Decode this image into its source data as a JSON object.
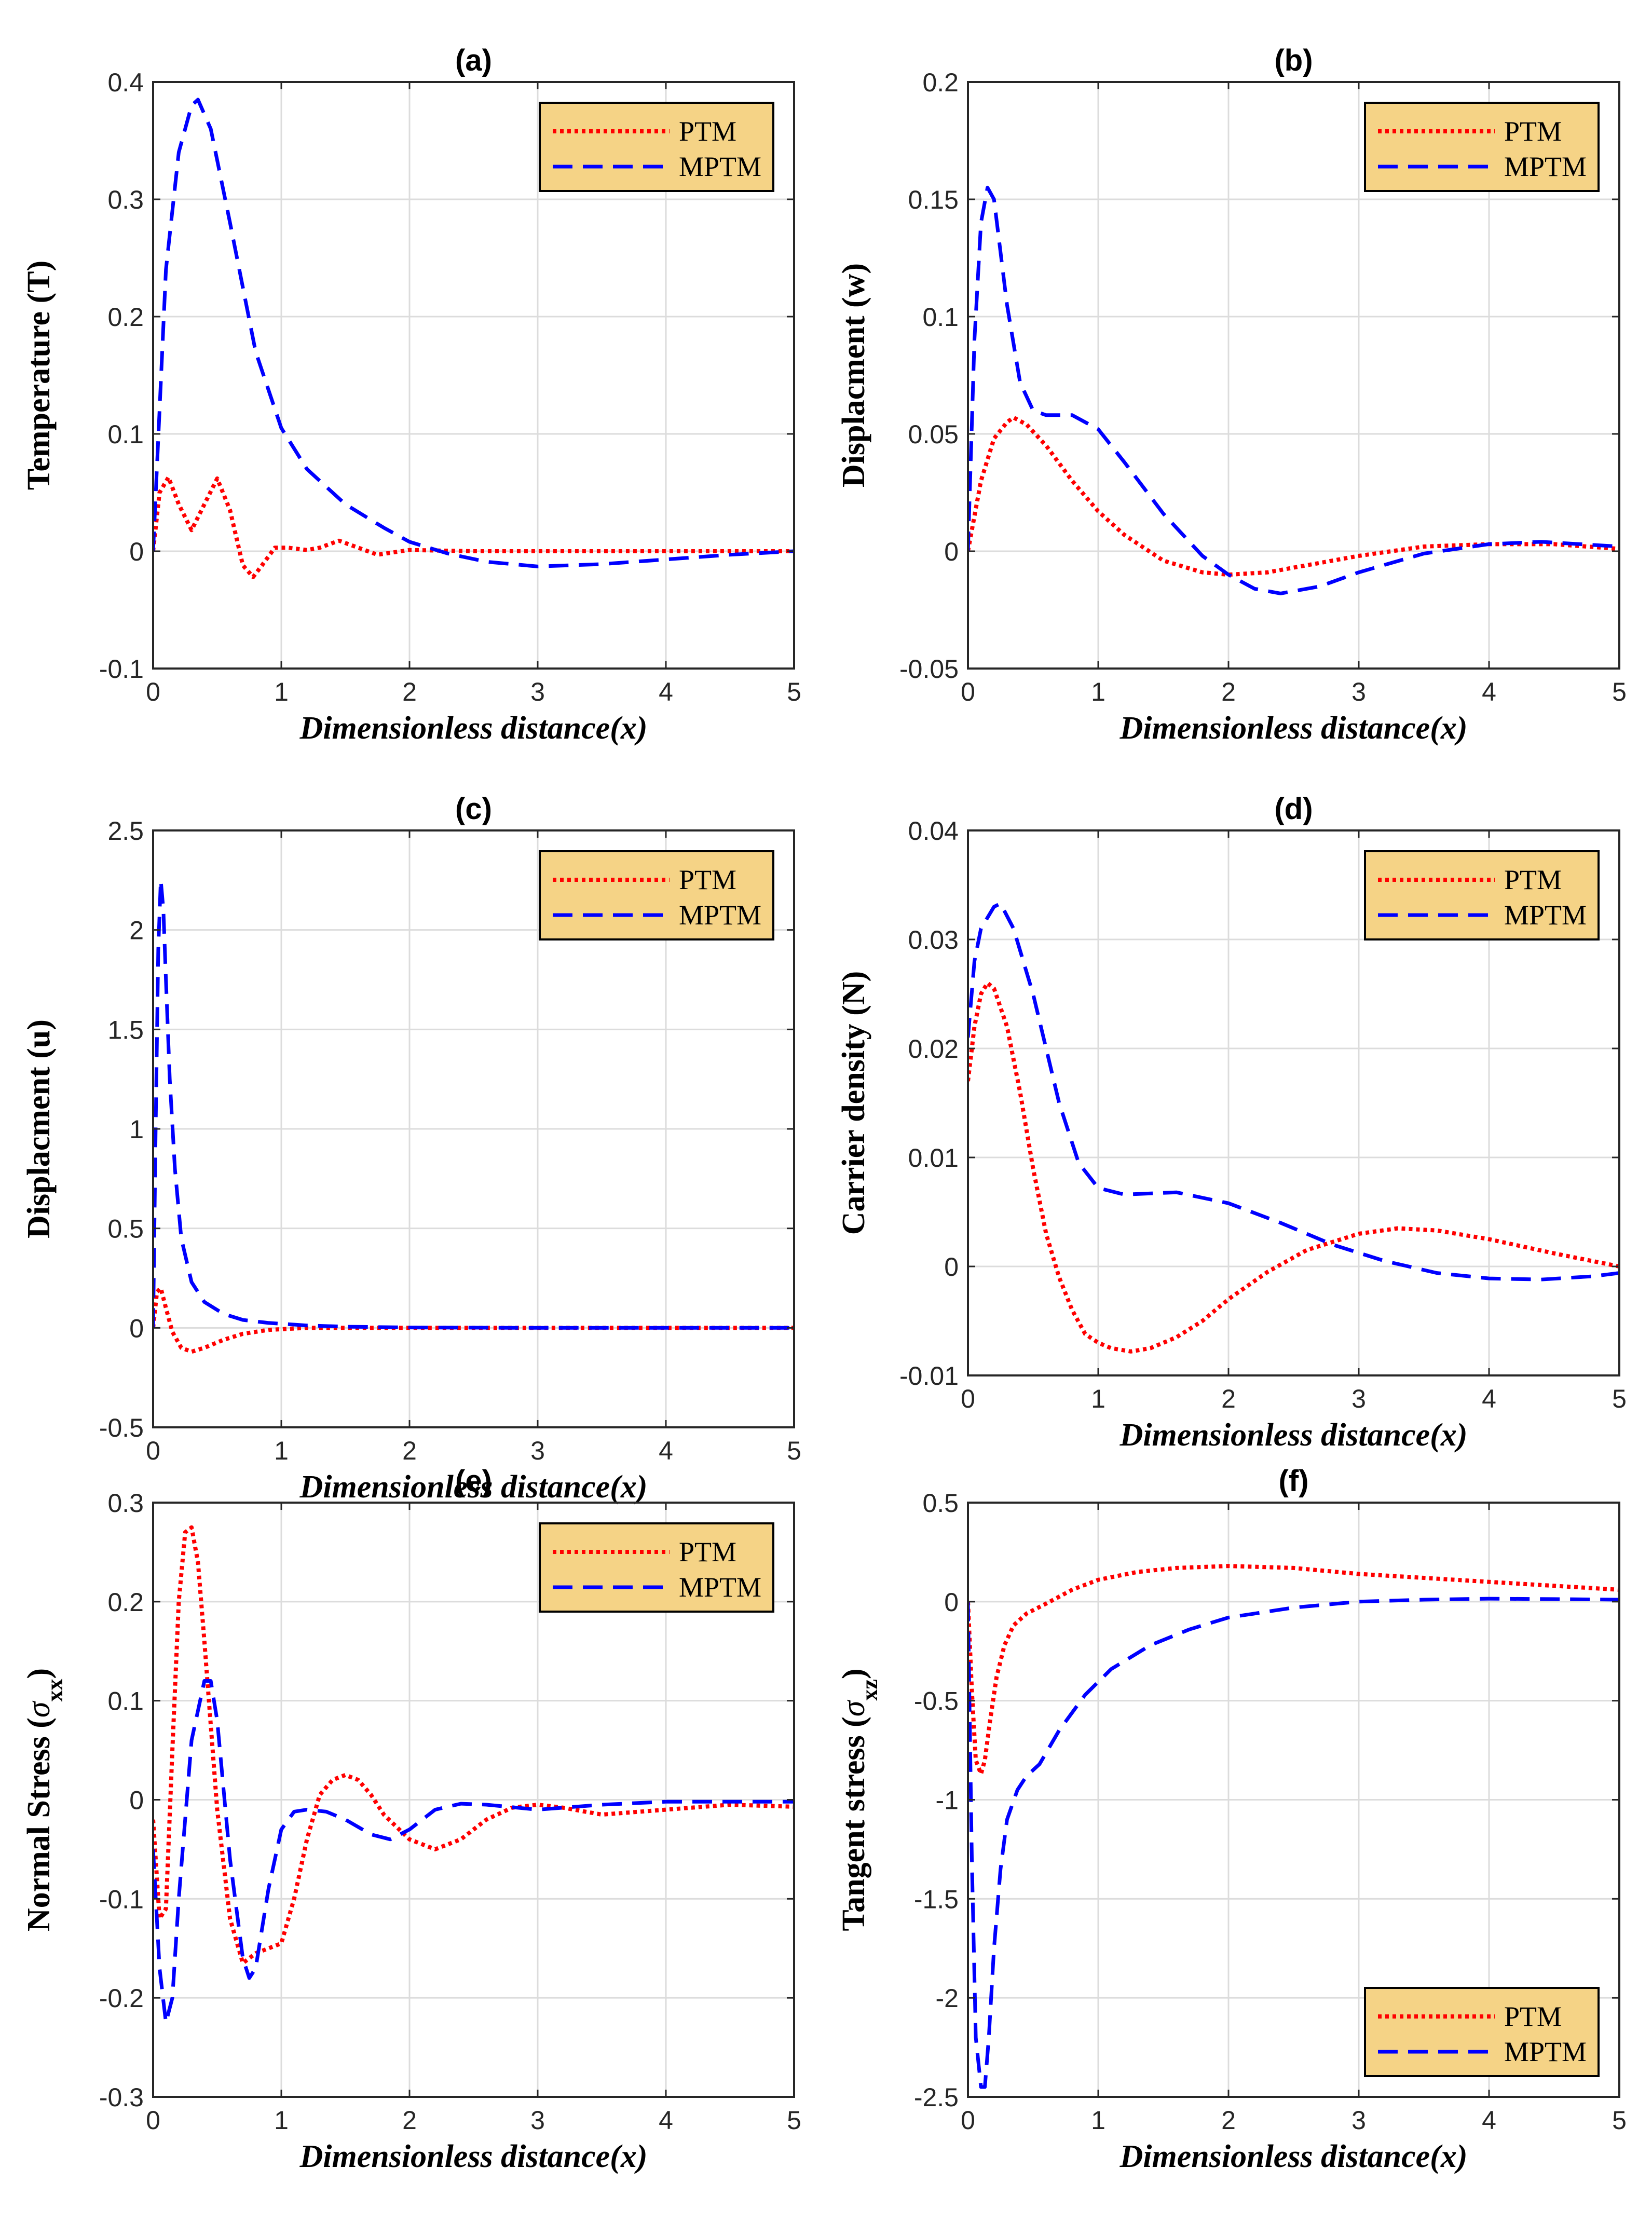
{
  "colors": {
    "PTM": "#ff0000",
    "MPTM": "#0000ff",
    "legend_bg": "#f5d386"
  },
  "chart_data": [
    {
      "id": "a",
      "type": "line",
      "title": "(a)",
      "xlabel": "Dimensionless distance(x)",
      "ylabel": "Temperature (T)",
      "xlim": [
        0,
        5
      ],
      "ylim": [
        -0.1,
        0.4
      ],
      "grid": true,
      "xticks": [
        0,
        1,
        2,
        3,
        4,
        5
      ],
      "xtick_labels": [
        "0",
        "1",
        "2",
        "3",
        "4",
        "5"
      ],
      "yticks": [
        -0.1,
        0,
        0.1,
        0.2,
        0.3,
        0.4
      ],
      "ytick_labels": [
        "-0.1",
        "0",
        "0.1",
        "0.2",
        "0.3",
        "0.4"
      ],
      "legend": "top-right",
      "series": [
        {
          "name": "PTM",
          "style": "dotted",
          "color": "#ff0000",
          "x": [
            0,
            0.05,
            0.12,
            0.2,
            0.3,
            0.4,
            0.5,
            0.6,
            0.7,
            0.78,
            0.85,
            0.95,
            1.05,
            1.2,
            1.3,
            1.45,
            1.6,
            1.75,
            2.0,
            2.5,
            3,
            4,
            5
          ],
          "y": [
            0,
            0.05,
            0.063,
            0.04,
            0.018,
            0.04,
            0.062,
            0.035,
            -0.012,
            -0.022,
            -0.012,
            0.003,
            0.003,
            0.001,
            0.003,
            0.009,
            0.003,
            -0.003,
            0.001,
            0,
            0,
            0,
            0
          ]
        },
        {
          "name": "MPTM",
          "style": "dashed",
          "color": "#0000ff",
          "x": [
            0,
            0.05,
            0.1,
            0.2,
            0.3,
            0.35,
            0.45,
            0.6,
            0.8,
            1.0,
            1.2,
            1.5,
            1.8,
            2.0,
            2.3,
            2.6,
            3.0,
            3.5,
            4.0,
            4.5,
            5
          ],
          "y": [
            0,
            0.12,
            0.24,
            0.34,
            0.38,
            0.385,
            0.36,
            0.28,
            0.17,
            0.105,
            0.07,
            0.04,
            0.02,
            0.008,
            -0.002,
            -0.009,
            -0.013,
            -0.011,
            -0.007,
            -0.003,
            0
          ]
        }
      ]
    },
    {
      "id": "b",
      "type": "line",
      "title": "(b)",
      "xlabel": "Dimensionless distance(x)",
      "ylabel": "Displacment (w)",
      "xlim": [
        0,
        5
      ],
      "ylim": [
        -0.05,
        0.2
      ],
      "grid": true,
      "xticks": [
        0,
        1,
        2,
        3,
        4,
        5
      ],
      "xtick_labels": [
        "0",
        "1",
        "2",
        "3",
        "4",
        "5"
      ],
      "yticks": [
        -0.05,
        0,
        0.05,
        0.1,
        0.15,
        0.2
      ],
      "ytick_labels": [
        "-0.05",
        "0",
        "0.05",
        "0.1",
        "0.15",
        "0.2"
      ],
      "legend": "top-right",
      "series": [
        {
          "name": "PTM",
          "style": "dotted",
          "color": "#ff0000",
          "x": [
            0,
            0.1,
            0.2,
            0.3,
            0.35,
            0.45,
            0.6,
            0.8,
            1.0,
            1.2,
            1.5,
            1.8,
            2.0,
            2.3,
            2.6,
            3.0,
            3.5,
            4.0,
            4.5,
            5
          ],
          "y": [
            0,
            0.03,
            0.048,
            0.055,
            0.057,
            0.054,
            0.045,
            0.03,
            0.017,
            0.007,
            -0.004,
            -0.009,
            -0.01,
            -0.009,
            -0.006,
            -0.002,
            0.002,
            0.003,
            0.003,
            0.001
          ]
        },
        {
          "name": "MPTM",
          "style": "dashed",
          "color": "#0000ff",
          "x": [
            0,
            0.05,
            0.1,
            0.15,
            0.2,
            0.3,
            0.4,
            0.5,
            0.6,
            0.8,
            1.0,
            1.2,
            1.5,
            1.8,
            2.0,
            2.2,
            2.4,
            2.7,
            3.0,
            3.5,
            4.0,
            4.4,
            5
          ],
          "y": [
            0,
            0.09,
            0.14,
            0.155,
            0.15,
            0.105,
            0.072,
            0.06,
            0.058,
            0.058,
            0.052,
            0.038,
            0.016,
            -0.002,
            -0.01,
            -0.016,
            -0.018,
            -0.015,
            -0.009,
            -0.001,
            0.003,
            0.004,
            0.002
          ]
        }
      ]
    },
    {
      "id": "c",
      "type": "line",
      "title": "(c)",
      "xlabel": "Dimensionless distance(x)",
      "ylabel": "Displacment (u)",
      "xlim": [
        0,
        5
      ],
      "ylim": [
        -0.5,
        2.5
      ],
      "grid": true,
      "xticks": [
        0,
        1,
        2,
        3,
        4,
        5
      ],
      "xtick_labels": [
        "0",
        "1",
        "2",
        "3",
        "4",
        "5"
      ],
      "yticks": [
        -0.5,
        0,
        0.5,
        1,
        1.5,
        2,
        2.5
      ],
      "ytick_labels": [
        "-0.5",
        "0",
        "0.5",
        "1",
        "1.5",
        "2",
        "2.5"
      ],
      "legend": "top-right",
      "series": [
        {
          "name": "PTM",
          "style": "dotted",
          "color": "#ff0000",
          "x": [
            0,
            0.03,
            0.06,
            0.1,
            0.15,
            0.22,
            0.3,
            0.4,
            0.55,
            0.7,
            0.9,
            1.2,
            1.5,
            2,
            3,
            4,
            5
          ],
          "y": [
            0,
            0.18,
            0.2,
            0.1,
            -0.02,
            -0.1,
            -0.12,
            -0.1,
            -0.06,
            -0.03,
            -0.01,
            0,
            0,
            0,
            0,
            0,
            0
          ]
        },
        {
          "name": "MPTM",
          "style": "dashed",
          "color": "#0000ff",
          "x": [
            0,
            0.02,
            0.04,
            0.06,
            0.08,
            0.1,
            0.13,
            0.17,
            0.22,
            0.3,
            0.4,
            0.55,
            0.7,
            0.9,
            1.2,
            1.5,
            2,
            3,
            4,
            5
          ],
          "y": [
            0,
            1.0,
            1.9,
            2.25,
            2.1,
            1.75,
            1.25,
            0.8,
            0.45,
            0.23,
            0.13,
            0.07,
            0.04,
            0.025,
            0.012,
            0.006,
            0.002,
            0,
            0,
            0
          ]
        }
      ]
    },
    {
      "id": "d",
      "type": "line",
      "title": "(d)",
      "xlabel": "Dimensionless distance(x)",
      "ylabel": "Carrier density (N)",
      "xlim": [
        0,
        5
      ],
      "ylim": [
        -0.01,
        0.04
      ],
      "grid": true,
      "xticks": [
        0,
        1,
        2,
        3,
        4,
        5
      ],
      "xtick_labels": [
        "0",
        "1",
        "2",
        "3",
        "4",
        "5"
      ],
      "yticks": [
        -0.01,
        0,
        0.01,
        0.02,
        0.03,
        0.04
      ],
      "ytick_labels": [
        "-0.01",
        "0",
        "0.01",
        "0.02",
        "0.03",
        "0.04"
      ],
      "legend": "top-right",
      "series": [
        {
          "name": "PTM",
          "style": "dotted",
          "color": "#ff0000",
          "x": [
            0,
            0.05,
            0.1,
            0.15,
            0.2,
            0.3,
            0.4,
            0.5,
            0.6,
            0.7,
            0.8,
            0.9,
            1.0,
            1.1,
            1.25,
            1.4,
            1.6,
            1.8,
            2.0,
            2.3,
            2.6,
            3.0,
            3.3,
            3.6,
            4.0,
            4.5,
            5
          ],
          "y": [
            0.017,
            0.022,
            0.025,
            0.026,
            0.0255,
            0.022,
            0.016,
            0.009,
            0.003,
            -0.001,
            -0.004,
            -0.0062,
            -0.007,
            -0.0075,
            -0.0078,
            -0.0075,
            -0.0065,
            -0.005,
            -0.003,
            -0.0005,
            0.0015,
            0.003,
            0.0035,
            0.0033,
            0.0025,
            0.0012,
            0
          ]
        },
        {
          "name": "MPTM",
          "style": "dashed",
          "color": "#0000ff",
          "x": [
            0,
            0.05,
            0.1,
            0.2,
            0.25,
            0.35,
            0.5,
            0.7,
            0.85,
            1.0,
            1.2,
            1.6,
            2.0,
            2.4,
            2.8,
            3.2,
            3.6,
            4.0,
            4.4,
            4.8,
            5
          ],
          "y": [
            0.021,
            0.028,
            0.031,
            0.033,
            0.0333,
            0.031,
            0.025,
            0.015,
            0.0095,
            0.0072,
            0.0066,
            0.0068,
            0.0058,
            0.004,
            0.002,
            0.0005,
            -0.0006,
            -0.0011,
            -0.0012,
            -0.0009,
            -0.0006
          ]
        }
      ]
    },
    {
      "id": "e",
      "type": "line",
      "title": "(e)",
      "xlabel": "Dimensionless distance(x)",
      "ylabel": "Normal Stress",
      "ylabel_symbol": "σ",
      "ylabel_subscript": "xx",
      "xlim": [
        0,
        5
      ],
      "ylim": [
        -0.3,
        0.3
      ],
      "grid": true,
      "xticks": [
        0,
        1,
        2,
        3,
        4,
        5
      ],
      "xtick_labels": [
        "0",
        "1",
        "2",
        "3",
        "4",
        "5"
      ],
      "yticks": [
        -0.3,
        -0.2,
        -0.1,
        0,
        0.1,
        0.2,
        0.3
      ],
      "ytick_labels": [
        "-0.3",
        "-0.2",
        "-0.1",
        "0",
        "0.1",
        "0.2",
        "0.3"
      ],
      "legend": "top-right",
      "series": [
        {
          "name": "PTM",
          "style": "dotted",
          "color": "#ff0000",
          "x": [
            0,
            0.05,
            0.1,
            0.15,
            0.2,
            0.25,
            0.3,
            0.35,
            0.4,
            0.5,
            0.6,
            0.7,
            0.8,
            0.9,
            1.0,
            1.1,
            1.2,
            1.3,
            1.4,
            1.5,
            1.6,
            1.7,
            1.8,
            2.0,
            2.2,
            2.4,
            2.6,
            2.8,
            3.0,
            3.2,
            3.5,
            4.0,
            4.5,
            5
          ],
          "y": [
            -0.02,
            -0.12,
            -0.11,
            0.05,
            0.2,
            0.27,
            0.275,
            0.24,
            0.16,
            -0.01,
            -0.12,
            -0.165,
            -0.155,
            -0.15,
            -0.145,
            -0.1,
            -0.04,
            0.005,
            0.02,
            0.025,
            0.02,
            0.005,
            -0.015,
            -0.04,
            -0.05,
            -0.04,
            -0.02,
            -0.008,
            -0.005,
            -0.008,
            -0.015,
            -0.01,
            -0.005,
            -0.007
          ]
        },
        {
          "name": "MPTM",
          "style": "dashed",
          "color": "#0000ff",
          "x": [
            0,
            0.05,
            0.1,
            0.15,
            0.2,
            0.3,
            0.4,
            0.45,
            0.5,
            0.6,
            0.7,
            0.75,
            0.8,
            0.9,
            1.0,
            1.1,
            1.2,
            1.35,
            1.5,
            1.7,
            1.85,
            2.0,
            2.2,
            2.4,
            2.6,
            3.0,
            3.5,
            4.0,
            4.5,
            5
          ],
          "y": [
            -0.05,
            -0.17,
            -0.225,
            -0.2,
            -0.1,
            0.06,
            0.12,
            0.12,
            0.08,
            -0.06,
            -0.16,
            -0.18,
            -0.17,
            -0.09,
            -0.03,
            -0.012,
            -0.01,
            -0.012,
            -0.02,
            -0.035,
            -0.04,
            -0.03,
            -0.01,
            -0.004,
            -0.005,
            -0.01,
            -0.005,
            -0.002,
            -0.002,
            -0.002
          ]
        }
      ]
    },
    {
      "id": "f",
      "type": "line",
      "title": "(f)",
      "xlabel": "Dimensionless distance(x)",
      "ylabel": "Tangent stress",
      "ylabel_symbol": "σ",
      "ylabel_subscript": "xz",
      "xlim": [
        0,
        5
      ],
      "ylim": [
        -2.5,
        0.5
      ],
      "grid": true,
      "xticks": [
        0,
        1,
        2,
        3,
        4,
        5
      ],
      "xtick_labels": [
        "0",
        "1",
        "2",
        "3",
        "4",
        "5"
      ],
      "yticks": [
        -2.5,
        -2,
        -1.5,
        -1,
        -0.5,
        0,
        0.5
      ],
      "ytick_labels": [
        "-2.5",
        "-2",
        "-1.5",
        "-1",
        "-0.5",
        "0",
        "0.5"
      ],
      "legend": "bottom-right",
      "series": [
        {
          "name": "PTM",
          "style": "dotted",
          "color": "#ff0000",
          "x": [
            0,
            0.03,
            0.06,
            0.1,
            0.13,
            0.17,
            0.22,
            0.28,
            0.35,
            0.45,
            0.6,
            0.8,
            1.0,
            1.3,
            1.6,
            2.0,
            2.5,
            3.0,
            3.5,
            4.0,
            4.5,
            5
          ],
          "y": [
            0,
            -0.45,
            -0.8,
            -0.87,
            -0.8,
            -0.6,
            -0.38,
            -0.22,
            -0.12,
            -0.06,
            -0.01,
            0.06,
            0.11,
            0.15,
            0.17,
            0.18,
            0.17,
            0.14,
            0.12,
            0.1,
            0.08,
            0.06
          ]
        },
        {
          "name": "MPTM",
          "style": "dashed",
          "color": "#0000ff",
          "x": [
            0,
            0.03,
            0.06,
            0.1,
            0.13,
            0.16,
            0.2,
            0.25,
            0.3,
            0.38,
            0.45,
            0.55,
            0.7,
            0.9,
            1.1,
            1.4,
            1.7,
            2.0,
            2.5,
            3.0,
            3.5,
            4.0,
            4.5,
            5
          ],
          "y": [
            0,
            -1.3,
            -2.2,
            -2.45,
            -2.45,
            -2.2,
            -1.75,
            -1.35,
            -1.1,
            -0.95,
            -0.88,
            -0.82,
            -0.65,
            -0.47,
            -0.34,
            -0.22,
            -0.14,
            -0.08,
            -0.03,
            0.0,
            0.01,
            0.015,
            0.013,
            0.01
          ]
        }
      ]
    }
  ]
}
